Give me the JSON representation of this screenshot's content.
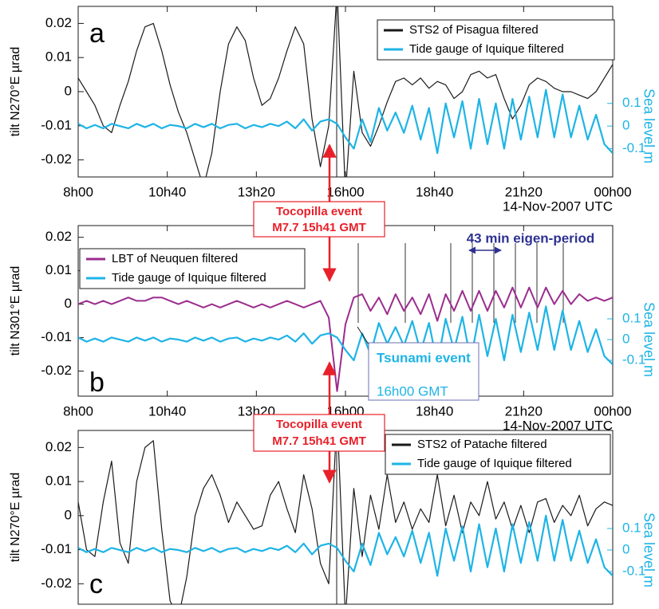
{
  "chart_data": [
    {
      "type": "line",
      "label": "a",
      "ylabel": "tilt N270°E µrad",
      "y2label": "Sea level m",
      "xlabel": "14-Nov-2007 UTC",
      "xlim": [
        8,
        24
      ],
      "xticks": [
        {
          "value": 8,
          "label": "8h00"
        },
        {
          "value": 10.6667,
          "label": "10h40"
        },
        {
          "value": 13.3333,
          "label": "13h20"
        },
        {
          "value": 16,
          "label": "16h00"
        },
        {
          "value": 18.6667,
          "label": "18h40"
        },
        {
          "value": 21.3333,
          "label": "21h20"
        },
        {
          "value": 24,
          "label": "00h00"
        }
      ],
      "ylim": [
        -0.025,
        0.025
      ],
      "yticks": [
        0.02,
        0.01,
        0,
        -0.01,
        -0.02
      ],
      "y2lim": [
        -0.225,
        0.529
      ],
      "y2ticks": [
        0.1,
        0,
        -0.1
      ],
      "x": [
        8,
        8.25,
        8.5,
        8.75,
        9,
        9.25,
        9.5,
        9.75,
        10,
        10.25,
        10.5,
        10.75,
        11,
        11.25,
        11.5,
        11.75,
        12,
        12.25,
        12.5,
        12.75,
        13,
        13.25,
        13.5,
        13.75,
        14,
        14.25,
        14.5,
        14.75,
        15,
        15.25,
        15.5,
        15.75,
        16,
        16.25,
        16.5,
        16.75,
        17,
        17.25,
        17.5,
        17.75,
        18,
        18.25,
        18.5,
        18.75,
        19,
        19.25,
        19.5,
        19.75,
        20,
        20.25,
        20.5,
        20.75,
        21,
        21.25,
        21.5,
        21.75,
        22,
        22.25,
        22.5,
        22.75,
        23,
        23.25,
        23.5,
        23.75,
        24
      ],
      "series": [
        {
          "name": "STS2 of Pisagua filtered",
          "color": "#1a1a1a",
          "values": [
            0.004,
            0,
            -0.004,
            -0.01,
            -0.012,
            -0.004,
            0.003,
            0.012,
            0.019,
            0.02,
            0.012,
            0.002,
            -0.006,
            -0.012,
            -0.02,
            -0.028,
            -0.018,
            0,
            0.014,
            0.019,
            0.015,
            0.004,
            -0.004,
            -0.002,
            0.004,
            0.012,
            0.019,
            0.014,
            -0.008,
            -0.022,
            -0.01,
            0.03,
            -0.03,
            0.006,
            -0.012,
            -0.016,
            -0.01,
            -0.003,
            0.003,
            0.004,
            0.002,
            0.004,
            0.001,
            0.003,
            0.002,
            -0.002,
            0,
            0.005,
            0.006,
            0.004,
            0.005,
            -0.002,
            -0.008,
            -0.004,
            0.002,
            0.004,
            0.003,
            0.001,
            0,
            0,
            -0.001,
            -0.002,
            0,
            0.004,
            0.008
          ]
        },
        {
          "name": "Tide gauge of Iquique filtered",
          "color": "#1eb4e6",
          "axis": "y2",
          "values": [
            0.01,
            -0.01,
            0.005,
            -0.01,
            0.01,
            0,
            -0.01,
            0.01,
            -0.005,
            0.01,
            -0.01,
            0.005,
            0,
            -0.01,
            0.01,
            -0.005,
            0.01,
            -0.01,
            0.005,
            0.01,
            -0.01,
            0.005,
            -0.005,
            0.01,
            0,
            0.02,
            -0.01,
            0.03,
            -0.02,
            0.02,
            0.03,
            0.01,
            -0.05,
            -0.1,
            0.03,
            -0.07,
            0.08,
            -0.02,
            0.06,
            -0.03,
            0.09,
            -0.06,
            0.08,
            -0.12,
            0.1,
            -0.05,
            0.11,
            -0.1,
            0.12,
            -0.08,
            0.1,
            -0.1,
            0.12,
            -0.06,
            0.13,
            -0.05,
            0.16,
            -0.05,
            0.14,
            -0.05,
            0.09,
            -0.06,
            0.05,
            -0.08,
            -0.12
          ]
        }
      ],
      "legend": "upper right",
      "annotations": [
        "Tocopilla event",
        "M7.7 15h41 GMT"
      ]
    },
    {
      "type": "line",
      "label": "b",
      "ylabel": "tilt N301°E µrad",
      "y2label": "Sea level m",
      "xlabel": "14-Nov-2007 UTC",
      "xlim": [
        8,
        24
      ],
      "xticks": [
        {
          "value": 8,
          "label": "8h00"
        },
        {
          "value": 10.6667,
          "label": "10h40"
        },
        {
          "value": 13.3333,
          "label": "13h20"
        },
        {
          "value": 16,
          "label": "16h00"
        },
        {
          "value": 18.6667,
          "label": "18h40"
        },
        {
          "value": 21.3333,
          "label": "21h20"
        },
        {
          "value": 24,
          "label": "00h00"
        }
      ],
      "ylim": [
        -0.0275,
        0.0235
      ],
      "yticks": [
        0.02,
        0.01,
        0,
        -0.01,
        -0.02
      ],
      "y2lim": [
        -0.273,
        0.55
      ],
      "y2ticks": [
        0.1,
        0,
        -0.1
      ],
      "x": [
        8,
        8.25,
        8.5,
        8.75,
        9,
        9.25,
        9.5,
        9.75,
        10,
        10.25,
        10.5,
        10.75,
        11,
        11.25,
        11.5,
        11.75,
        12,
        12.25,
        12.5,
        12.75,
        13,
        13.25,
        13.5,
        13.75,
        14,
        14.25,
        14.5,
        14.75,
        15,
        15.25,
        15.5,
        15.75,
        16,
        16.25,
        16.5,
        16.75,
        17,
        17.25,
        17.5,
        17.75,
        18,
        18.25,
        18.5,
        18.75,
        19,
        19.25,
        19.5,
        19.75,
        20,
        20.25,
        20.5,
        20.75,
        21,
        21.25,
        21.5,
        21.75,
        22,
        22.25,
        22.5,
        22.75,
        23,
        23.25,
        23.5,
        23.75,
        24
      ],
      "series": [
        {
          "name": "LBT of Neuquen filtered",
          "color": "#9b2d8e",
          "values": [
            0,
            0.001,
            0,
            0.001,
            0,
            0.001,
            0.002,
            0.001,
            0.001,
            0.002,
            0.002,
            0.001,
            0,
            0.001,
            0,
            -0.001,
            0,
            -0.001,
            0,
            0.001,
            0,
            -0.001,
            0,
            -0.001,
            0,
            0.001,
            0,
            -0.001,
            0,
            0.001,
            -0.004,
            -0.026,
            -0.006,
            0.002,
            0.003,
            -0.002,
            0.002,
            -0.003,
            0.003,
            -0.002,
            0.002,
            -0.003,
            0.003,
            -0.005,
            0.003,
            -0.002,
            0.004,
            -0.002,
            0.004,
            -0.002,
            0.004,
            -0.001,
            0.005,
            -0.001,
            0.005,
            -0.001,
            0.005,
            0,
            0.004,
            0,
            0.003,
            0.001,
            0.002,
            0.001,
            0.002
          ]
        },
        {
          "name": "Tide gauge of Iquique filtered",
          "color": "#1eb4e6",
          "axis": "y2",
          "values": [
            0.01,
            -0.01,
            0.005,
            -0.01,
            0.01,
            0,
            -0.01,
            0.01,
            -0.005,
            0.01,
            -0.01,
            0.005,
            0,
            -0.01,
            0.01,
            -0.005,
            0.01,
            -0.01,
            0.005,
            0.01,
            -0.01,
            0.005,
            -0.005,
            0.01,
            0,
            0.02,
            -0.01,
            0.03,
            -0.02,
            0.02,
            0.03,
            0.01,
            -0.05,
            -0.1,
            0.03,
            -0.07,
            0.08,
            -0.02,
            0.06,
            -0.03,
            0.09,
            -0.06,
            0.08,
            -0.12,
            0.1,
            -0.05,
            0.11,
            -0.1,
            0.12,
            -0.08,
            0.1,
            -0.1,
            0.12,
            -0.06,
            0.13,
            -0.05,
            0.16,
            -0.05,
            0.14,
            -0.05,
            0.09,
            -0.06,
            0.05,
            -0.08,
            -0.12
          ]
        }
      ],
      "legend": "upper left",
      "annotations": [
        "43 min eigen-period",
        "Tsunami event",
        "16h00 GMT"
      ]
    },
    {
      "type": "line",
      "label": "c",
      "ylabel": "tilt N270°E µrad",
      "y2label": "Sea level m",
      "xlim": [
        8,
        24
      ],
      "ylim": [
        -0.026,
        0.025
      ],
      "yticks": [
        0.02,
        0.01,
        0,
        -0.01,
        -0.02
      ],
      "y2lim": [
        -0.252,
        0.556
      ],
      "y2ticks": [
        0.1,
        0,
        -0.1
      ],
      "x": [
        8,
        8.25,
        8.5,
        8.75,
        9,
        9.25,
        9.5,
        9.75,
        10,
        10.25,
        10.5,
        10.75,
        11,
        11.25,
        11.5,
        11.75,
        12,
        12.25,
        12.5,
        12.75,
        13,
        13.25,
        13.5,
        13.75,
        14,
        14.25,
        14.5,
        14.75,
        15,
        15.25,
        15.5,
        15.75,
        16,
        16.25,
        16.5,
        16.75,
        17,
        17.25,
        17.5,
        17.75,
        18,
        18.25,
        18.5,
        18.75,
        19,
        19.25,
        19.5,
        19.75,
        20,
        20.25,
        20.5,
        20.75,
        21,
        21.25,
        21.5,
        21.75,
        22,
        22.25,
        22.5,
        22.75,
        23,
        23.25,
        23.5,
        23.75,
        24
      ],
      "series": [
        {
          "name": "STS2 of Patache filtered",
          "color": "#1a1a1a",
          "values": [
            0.004,
            -0.01,
            -0.012,
            0.004,
            0.016,
            -0.008,
            -0.014,
            0.01,
            0.02,
            0.022,
            -0.004,
            -0.025,
            -0.03,
            -0.018,
            0,
            0.008,
            0.012,
            0.006,
            -0.002,
            0.004,
            0,
            -0.004,
            -0.003,
            0.006,
            0.01,
            0.002,
            -0.005,
            0.012,
            0.002,
            -0.014,
            -0.02,
            0.03,
            -0.03,
            0.008,
            -0.012,
            0.006,
            -0.004,
            0.012,
            -0.002,
            0.004,
            -0.004,
            0.002,
            -0.002,
            0.012,
            -0.003,
            0.006,
            -0.005,
            0.004,
            0,
            0.01,
            -0.001,
            0.004,
            -0.004,
            0.003,
            -0.005,
            0.004,
            0.005,
            -0.002,
            0.003,
            0,
            0.006,
            -0.003,
            0.002,
            0.004,
            0.003
          ]
        },
        {
          "name": "Tide gauge of Iquique filtered",
          "color": "#1eb4e6",
          "axis": "y2",
          "values": [
            0.01,
            -0.01,
            0.005,
            -0.01,
            0.01,
            0,
            -0.01,
            0.01,
            -0.005,
            0.01,
            -0.01,
            0.005,
            0,
            -0.01,
            0.01,
            -0.005,
            0.01,
            -0.01,
            0.005,
            0.01,
            -0.01,
            0.005,
            -0.005,
            0.01,
            0,
            0.02,
            -0.01,
            0.03,
            -0.02,
            0.02,
            0.03,
            0.01,
            -0.05,
            -0.1,
            0.03,
            -0.07,
            0.08,
            -0.02,
            0.06,
            -0.03,
            0.09,
            -0.06,
            0.08,
            -0.12,
            0.1,
            -0.05,
            0.11,
            -0.1,
            0.12,
            -0.08,
            0.1,
            -0.1,
            0.12,
            -0.06,
            0.13,
            -0.05,
            0.16,
            -0.05,
            0.14,
            -0.05,
            0.09,
            -0.06,
            0.05,
            -0.08,
            -0.12
          ]
        }
      ],
      "legend": "upper right",
      "annotations": [
        "Tocopilla event",
        "M7.7 15h41 GMT"
      ]
    }
  ]
}
